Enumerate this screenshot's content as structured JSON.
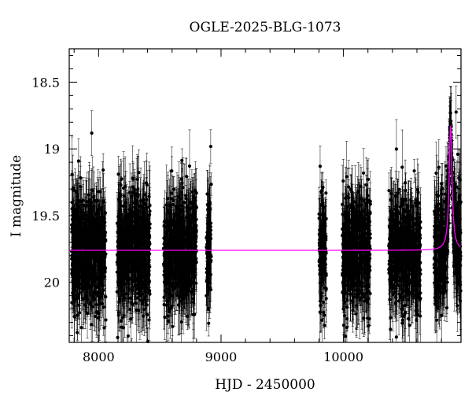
{
  "chart_data": {
    "type": "scatter",
    "title": "OGLE-2025-BLG-1073",
    "xlabel": "HJD - 2450000",
    "ylabel": "I magnitude",
    "xlim": [
      7760,
      10960
    ],
    "ylim": [
      20.45,
      18.25
    ],
    "y_inverted": true,
    "grid": false,
    "legend": "none",
    "x_major_ticks": [
      8000,
      9000,
      10000
    ],
    "x_tick_labels": [
      "8000",
      "9000",
      "10000"
    ],
    "y_major_ticks": [
      18.5,
      19,
      19.5,
      20
    ],
    "y_tick_labels": [
      "18.5",
      "19",
      "19.5",
      "20"
    ],
    "observing_seasons": [
      {
        "start": 7780,
        "end": 8060,
        "mean_mag": 19.75,
        "scatter": 0.22
      },
      {
        "start": 8150,
        "end": 8420,
        "mean_mag": 19.75,
        "scatter": 0.22
      },
      {
        "start": 8530,
        "end": 8800,
        "mean_mag": 19.75,
        "scatter": 0.22
      },
      {
        "start": 8880,
        "end": 8920,
        "mean_mag": 19.75,
        "scatter": 0.22
      },
      {
        "start": 9800,
        "end": 9860,
        "mean_mag": 19.75,
        "scatter": 0.22
      },
      {
        "start": 9990,
        "end": 10220,
        "mean_mag": 19.75,
        "scatter": 0.22
      },
      {
        "start": 10370,
        "end": 10630,
        "mean_mag": 19.75,
        "scatter": 0.22
      },
      {
        "start": 10740,
        "end": 10960,
        "mean_mag": 19.75,
        "scatter": 0.22
      }
    ],
    "series": [
      {
        "type": "line",
        "color": "#ff00ff",
        "baseline_mag": 19.76,
        "peak_mag": 18.82,
        "peak_time": 10875,
        "width_days": 14
      }
    ],
    "point_color": "#000000",
    "model_color": "#ff00ff"
  }
}
